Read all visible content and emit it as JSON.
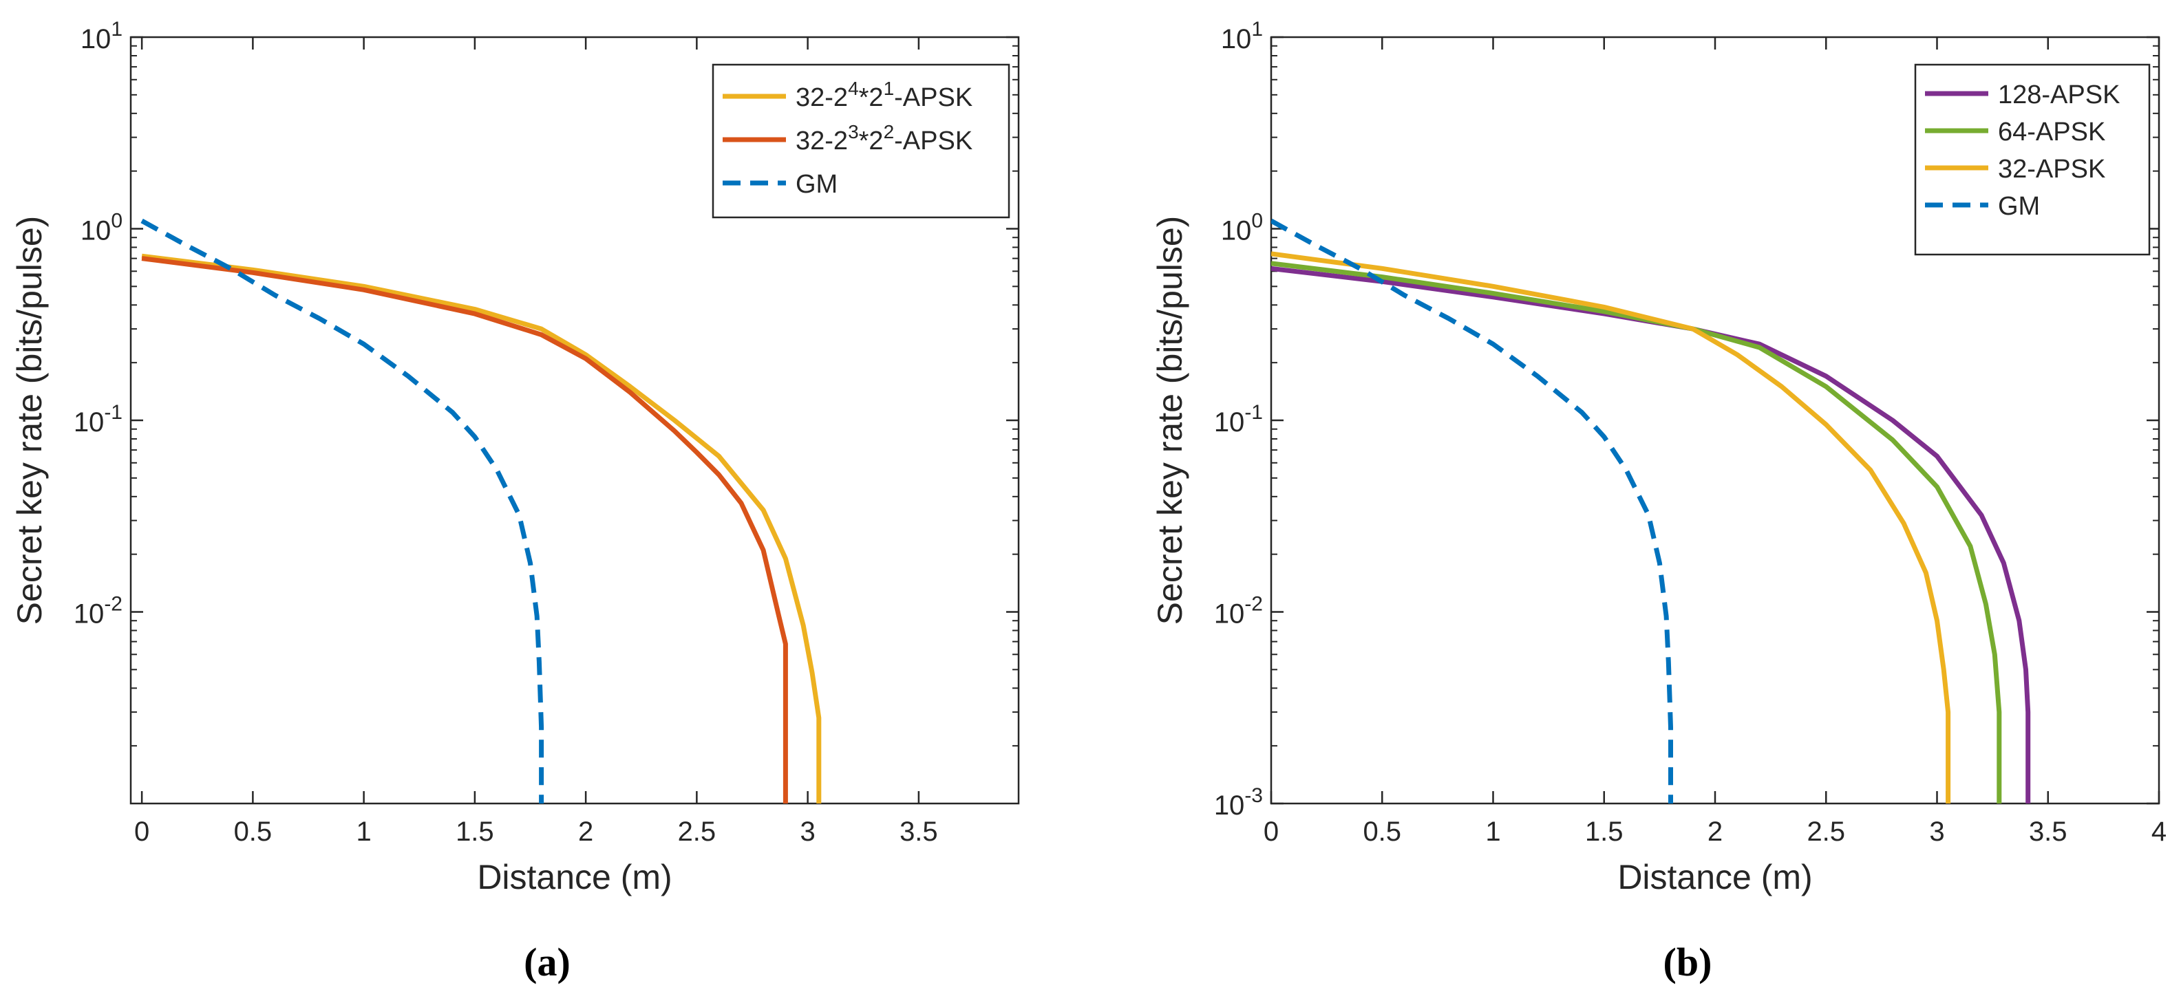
{
  "colors": {
    "yellow": "#EDB120",
    "orange": "#D95319",
    "blue": "#0072BD",
    "purple": "#7E2F8E",
    "green": "#77AC30"
  },
  "chart_data": [
    {
      "type": "line",
      "panel": "a",
      "caption": "(a)",
      "xlabel": "Distance (m)",
      "ylabel": "Secret key rate (bits/pulse)",
      "yscale": "log",
      "xlim": [
        -0.05,
        3.95
      ],
      "ylim": [
        0.001,
        10
      ],
      "xticks": [
        "0",
        "0.5",
        "1",
        "1.5",
        "2",
        "2.5",
        "3",
        "3.5"
      ],
      "yticks": [
        {
          "base": "10",
          "exp": "-2"
        },
        {
          "base": "10",
          "exp": "-1"
        },
        {
          "base": "10",
          "exp": "0"
        },
        {
          "base": "10",
          "exp": "1"
        }
      ],
      "legend_position": "top-right",
      "series": [
        {
          "name": "32-2^4*2^1-APSK",
          "label_parts": [
            "32-2",
            "4",
            "*2",
            "1",
            "-APSK"
          ],
          "color": "#EDB120",
          "dash": "solid",
          "x": [
            0,
            0.5,
            1.0,
            1.5,
            1.8,
            2.0,
            2.2,
            2.4,
            2.6,
            2.8,
            2.9,
            2.98,
            3.02,
            3.05,
            3.05
          ],
          "y": [
            0.72,
            0.61,
            0.5,
            0.38,
            0.3,
            0.22,
            0.15,
            0.1,
            0.065,
            0.034,
            0.019,
            0.0085,
            0.0048,
            0.0028,
            0.001
          ]
        },
        {
          "name": "32-2^3*2^2-APSK",
          "label_parts": [
            "32-2",
            "3",
            "*2",
            "2",
            "-APSK"
          ],
          "color": "#D95319",
          "dash": "solid",
          "x": [
            0,
            0.5,
            1.0,
            1.5,
            1.8,
            2.0,
            2.2,
            2.4,
            2.5,
            2.6,
            2.7,
            2.8,
            2.87,
            2.9,
            2.9
          ],
          "y": [
            0.7,
            0.59,
            0.48,
            0.36,
            0.28,
            0.21,
            0.14,
            0.088,
            0.068,
            0.052,
            0.037,
            0.021,
            0.0095,
            0.0068,
            0.001
          ]
        },
        {
          "name": "GM",
          "label_parts": [
            "GM"
          ],
          "color": "#0072BD",
          "dash": "dashed",
          "x": [
            0,
            0.2,
            0.4,
            0.6,
            0.8,
            1.0,
            1.2,
            1.4,
            1.5,
            1.6,
            1.7,
            1.75,
            1.78,
            1.79,
            1.8,
            1.8
          ],
          "y": [
            1.1,
            0.82,
            0.62,
            0.45,
            0.34,
            0.25,
            0.17,
            0.11,
            0.082,
            0.055,
            0.032,
            0.018,
            0.0095,
            0.0055,
            0.0025,
            0.001
          ]
        }
      ]
    },
    {
      "type": "line",
      "panel": "b",
      "caption": "(b)",
      "xlabel": "Distance (m)",
      "ylabel": "Secret key rate (bits/pulse)",
      "yscale": "log",
      "xlim": [
        0,
        4
      ],
      "ylim": [
        0.001,
        10
      ],
      "xticks": [
        "0",
        "0.5",
        "1",
        "1.5",
        "2",
        "2.5",
        "3",
        "3.5",
        "4"
      ],
      "yticks": [
        {
          "base": "10",
          "exp": "-3"
        },
        {
          "base": "10",
          "exp": "-2"
        },
        {
          "base": "10",
          "exp": "-1"
        },
        {
          "base": "10",
          "exp": "0"
        },
        {
          "base": "10",
          "exp": "1"
        }
      ],
      "legend_position": "top-right",
      "series": [
        {
          "name": "128-APSK",
          "label_parts": [
            "128-APSK"
          ],
          "color": "#7E2F8E",
          "dash": "solid",
          "x": [
            0,
            0.5,
            1.0,
            1.5,
            1.9,
            2.2,
            2.5,
            2.8,
            3.0,
            3.2,
            3.3,
            3.37,
            3.4,
            3.41,
            3.41
          ],
          "y": [
            0.62,
            0.53,
            0.44,
            0.36,
            0.3,
            0.25,
            0.17,
            0.1,
            0.065,
            0.032,
            0.018,
            0.009,
            0.005,
            0.003,
            0.001
          ]
        },
        {
          "name": "64-APSK",
          "label_parts": [
            "64-APSK"
          ],
          "color": "#77AC30",
          "dash": "solid",
          "x": [
            0,
            0.5,
            1.0,
            1.5,
            1.9,
            2.2,
            2.5,
            2.8,
            3.0,
            3.15,
            3.22,
            3.26,
            3.28,
            3.28
          ],
          "y": [
            0.66,
            0.56,
            0.46,
            0.37,
            0.3,
            0.24,
            0.15,
            0.079,
            0.045,
            0.022,
            0.011,
            0.006,
            0.003,
            0.001
          ]
        },
        {
          "name": "32-APSK",
          "label_parts": [
            "32-APSK"
          ],
          "color": "#EDB120",
          "dash": "solid",
          "x": [
            0,
            0.5,
            1.0,
            1.5,
            1.9,
            2.1,
            2.3,
            2.5,
            2.7,
            2.85,
            2.95,
            3.0,
            3.03,
            3.05,
            3.05
          ],
          "y": [
            0.74,
            0.62,
            0.5,
            0.39,
            0.3,
            0.22,
            0.15,
            0.095,
            0.055,
            0.029,
            0.016,
            0.009,
            0.005,
            0.003,
            0.001
          ]
        },
        {
          "name": "GM",
          "label_parts": [
            "GM"
          ],
          "color": "#0072BD",
          "dash": "dashed",
          "x": [
            0,
            0.2,
            0.4,
            0.6,
            0.8,
            1.0,
            1.2,
            1.4,
            1.5,
            1.6,
            1.7,
            1.75,
            1.78,
            1.79,
            1.8,
            1.8
          ],
          "y": [
            1.1,
            0.82,
            0.62,
            0.45,
            0.34,
            0.25,
            0.17,
            0.11,
            0.082,
            0.055,
            0.032,
            0.018,
            0.0095,
            0.0055,
            0.0025,
            0.001
          ]
        }
      ]
    }
  ]
}
